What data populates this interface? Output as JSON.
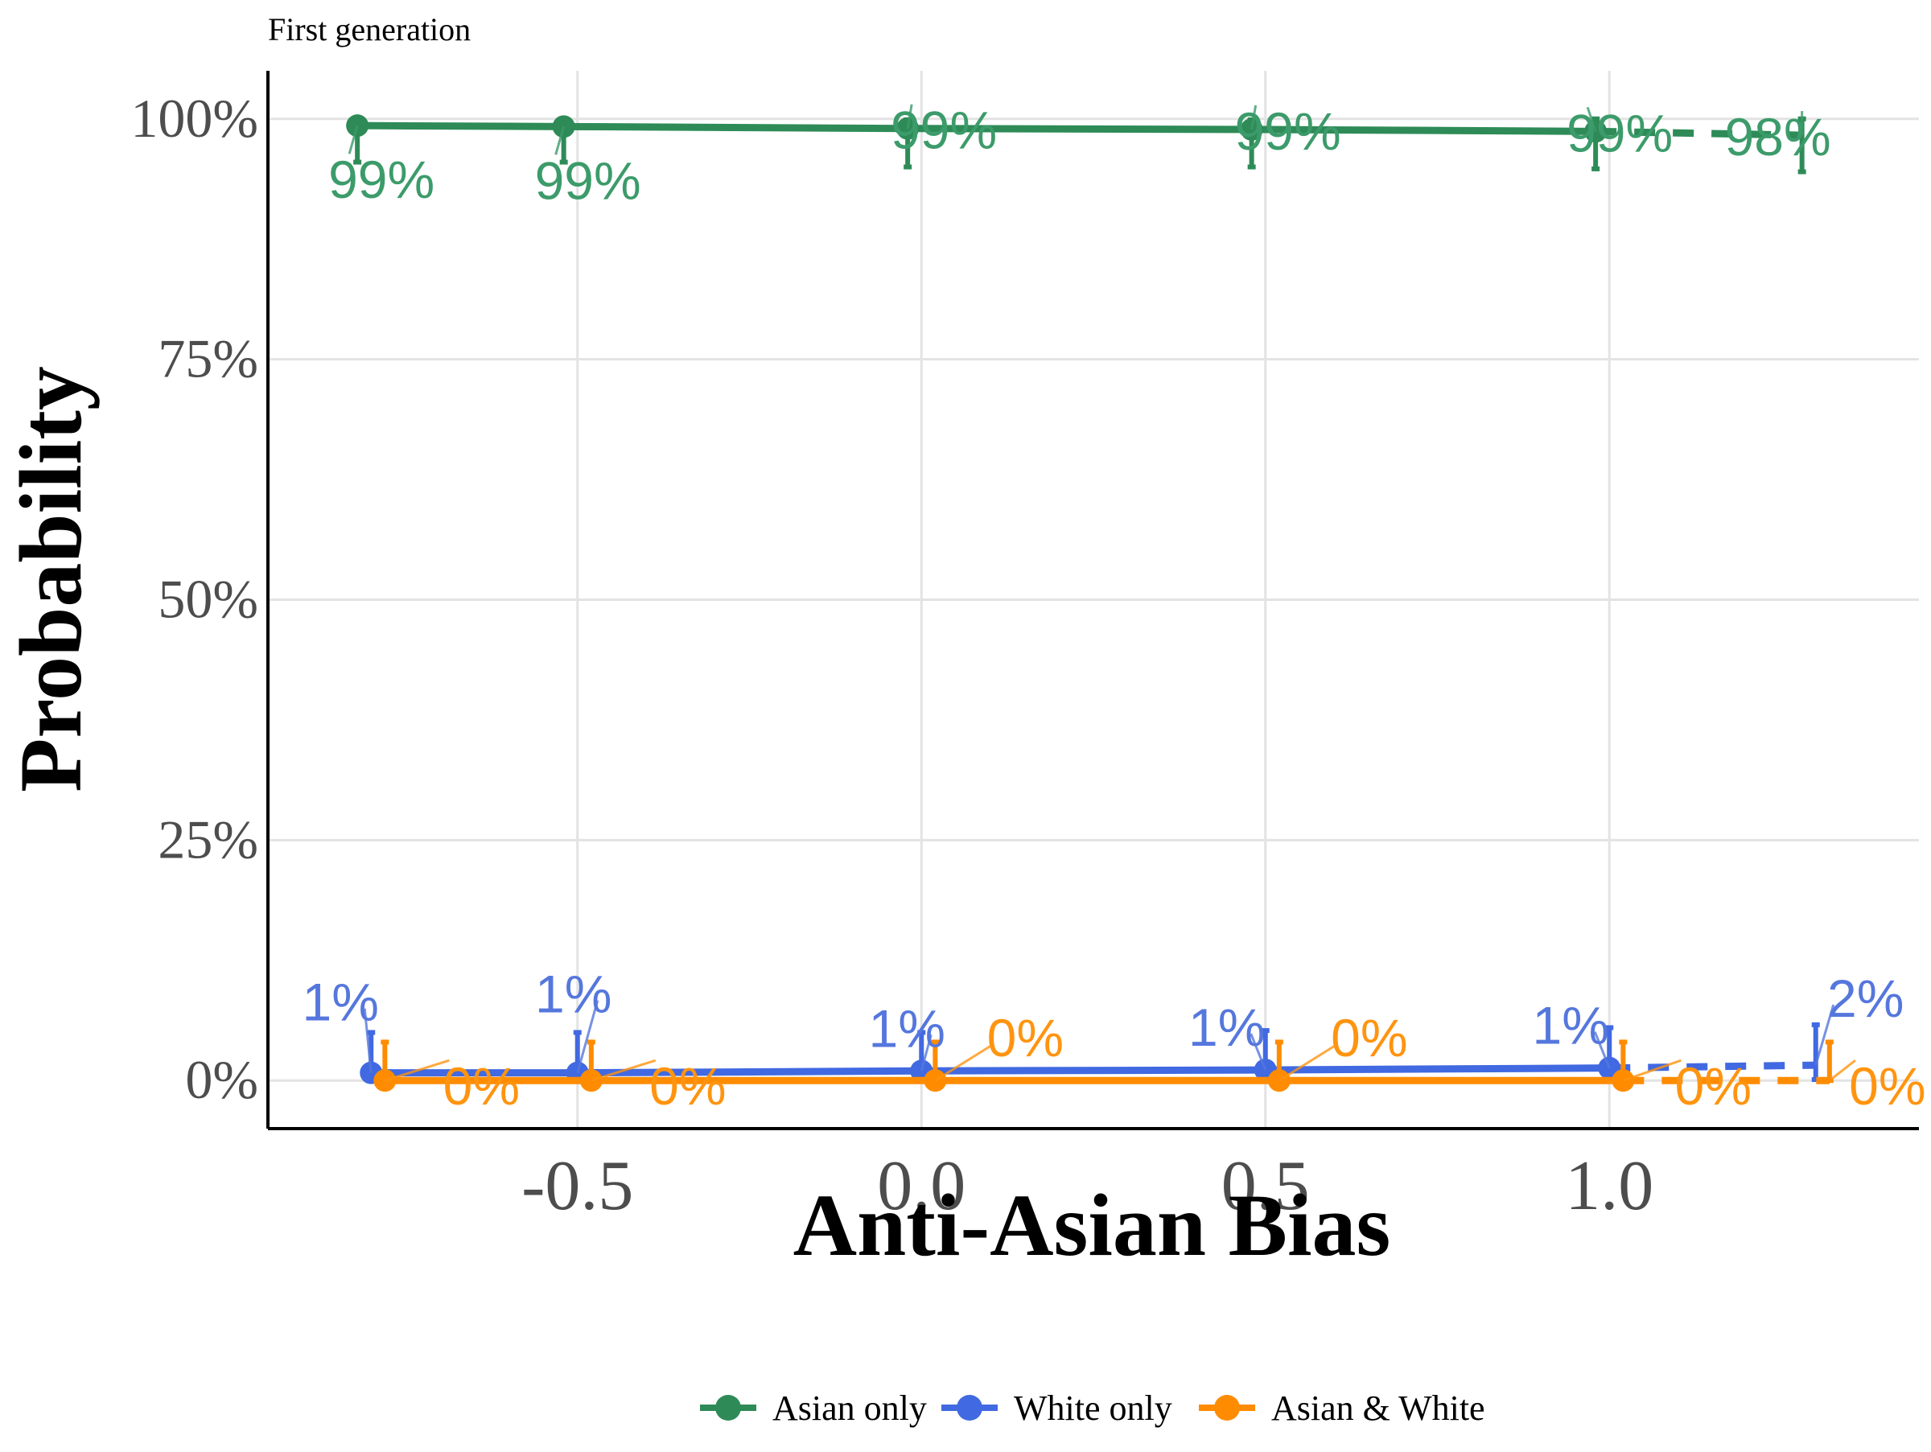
{
  "chart_data": {
    "type": "line",
    "subtitle": "First generation",
    "xlabel": "Anti-Asian Bias",
    "ylabel": "Probability",
    "xlim": [
      -0.95,
      1.45
    ],
    "ylim": [
      -0.05,
      1.05
    ],
    "x_ticks": [
      -0.5,
      0.0,
      0.5,
      1.0
    ],
    "x_tick_labels": [
      "-0.5",
      "0.0",
      "0.5",
      "1.0"
    ],
    "y_ticks": [
      0,
      0.25,
      0.5,
      0.75,
      1.0
    ],
    "y_tick_labels": [
      "0%",
      "25%",
      "50%",
      "75%",
      "100%"
    ],
    "grid": true,
    "legend_position": "bottom",
    "series": [
      {
        "name": "Asian only",
        "color": "#2e8b57",
        "dodge": 0,
        "x": [
          -0.82,
          -0.52,
          -0.02,
          0.48,
          0.98,
          1.28
        ],
        "y": [
          0.993,
          0.992,
          0.99,
          0.989,
          0.987,
          0.983
        ],
        "lower": [
          0.955,
          0.955,
          0.95,
          0.95,
          0.948,
          0.945
        ],
        "upper": [
          0.999,
          0.999,
          0.999,
          0.999,
          1.0,
          1.0
        ],
        "labels": [
          "99%",
          "99%",
          "99%",
          "99%",
          "99%",
          "98%"
        ]
      },
      {
        "name": "White only",
        "color": "#4169e1",
        "dodge": 0,
        "x": [
          -0.8,
          -0.5,
          0.0,
          0.5,
          1.0,
          1.3
        ],
        "y": [
          0.008,
          0.008,
          0.01,
          0.011,
          0.013,
          0.016
        ],
        "lower": [
          0.001,
          0.001,
          0.001,
          0.001,
          0.001,
          0.001
        ],
        "upper": [
          0.05,
          0.05,
          0.05,
          0.052,
          0.055,
          0.058
        ],
        "labels": [
          "1%",
          "1%",
          "1%",
          "1%",
          "1%",
          "2%"
        ]
      },
      {
        "name": "Asian & White",
        "color": "#ff8c00",
        "dodge": 0,
        "x": [
          -0.78,
          -0.48,
          0.02,
          0.52,
          1.02,
          1.32
        ],
        "y": [
          0.0,
          0.0,
          0.0,
          0.0,
          0.0,
          0.0
        ],
        "lower": [
          0.0,
          0.0,
          0.0,
          0.0,
          0.0,
          0.0
        ],
        "upper": [
          0.04,
          0.04,
          0.04,
          0.04,
          0.04,
          0.04
        ],
        "labels": [
          "0%",
          "0%",
          "0%",
          "0%",
          "0%",
          "0%"
        ]
      }
    ]
  }
}
